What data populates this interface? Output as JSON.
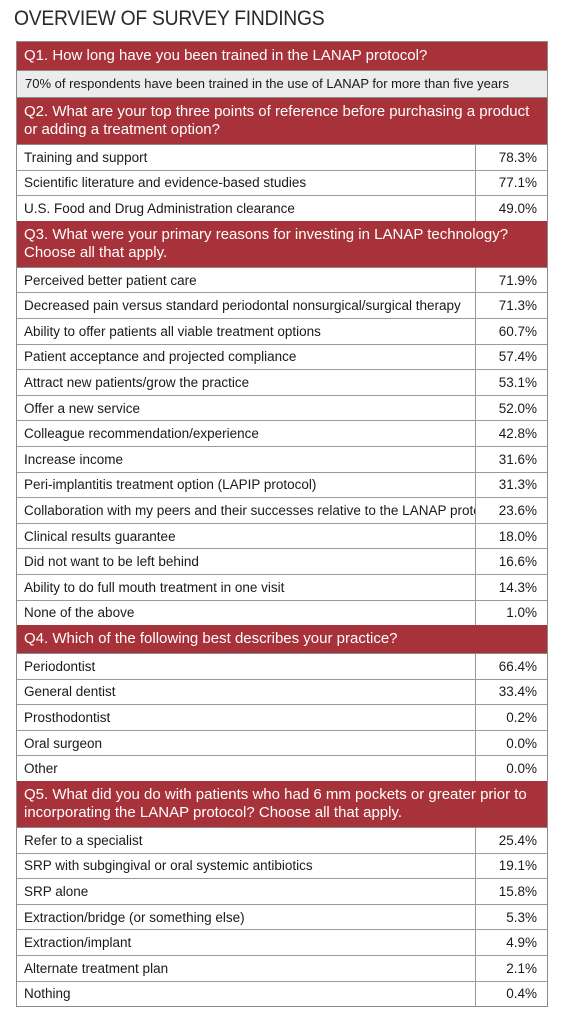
{
  "title": "OVERVIEW OF SURVEY FINDINGS",
  "sections": [
    {
      "question": "Q1. How long have you been trained in the LANAP protocol?",
      "note": "70% of respondents have been trained in the use of LANAP for more than five years",
      "rows": []
    },
    {
      "question": "Q2. What are your top three points of reference before purchasing a product or adding a treatment option?",
      "rows": [
        {
          "label": "Training and support",
          "value": "78.3%"
        },
        {
          "label": "Scientific literature and evidence-based studies",
          "value": "77.1%"
        },
        {
          "label": "U.S. Food and Drug Administration clearance",
          "value": "49.0%"
        }
      ]
    },
    {
      "question": "Q3. What were your primary reasons for investing in LANAP technology? Choose all that apply.",
      "rows": [
        {
          "label": "Perceived better patient care",
          "value": "71.9%"
        },
        {
          "label": "Decreased pain versus standard periodontal nonsurgical/surgical therapy",
          "value": "71.3%"
        },
        {
          "label": "Ability to offer patients all viable treatment options",
          "value": "60.7%"
        },
        {
          "label": "Patient acceptance and projected compliance",
          "value": "57.4%"
        },
        {
          "label": "Attract new patients/grow the practice",
          "value": "53.1%"
        },
        {
          "label": "Offer a new service",
          "value": "52.0%"
        },
        {
          "label": "Colleague recommendation/experience",
          "value": "42.8%"
        },
        {
          "label": "Increase income",
          "value": "31.6%"
        },
        {
          "label": "Peri-implantitis treatment option (LAPIP protocol)",
          "value": "31.3%"
        },
        {
          "label": "Collaboration with my peers and their successes relative to the LANAP protocol",
          "value": "23.6%"
        },
        {
          "label": "Clinical results guarantee",
          "value": "18.0%"
        },
        {
          "label": "Did not want to be left behind",
          "value": "16.6%"
        },
        {
          "label": "Ability to do full mouth treatment in one visit",
          "value": "14.3%"
        },
        {
          "label": "None of the above",
          "value": "1.0%"
        }
      ]
    },
    {
      "question": "Q4. Which of the following best describes your practice?",
      "rows": [
        {
          "label": "Periodontist",
          "value": "66.4%"
        },
        {
          "label": "General dentist",
          "value": "33.4%"
        },
        {
          "label": "Prosthodontist",
          "value": "0.2%"
        },
        {
          "label": "Oral surgeon",
          "value": "0.0%"
        },
        {
          "label": "Other",
          "value": "0.0%"
        }
      ]
    },
    {
      "question": "Q5. What did you do with patients who had 6 mm pockets or greater prior to incorporating the LANAP protocol? Choose all that apply.",
      "rows": [
        {
          "label": "Refer to a specialist",
          "value": "25.4%"
        },
        {
          "label": "SRP with subgingival or oral systemic antibiotics",
          "value": "19.1%"
        },
        {
          "label": "SRP alone",
          "value": "15.8%"
        },
        {
          "label": "Extraction/bridge (or something else)",
          "value": "5.3%"
        },
        {
          "label": "Extraction/implant",
          "value": "4.9%"
        },
        {
          "label": "Alternate treatment plan",
          "value": "2.1%"
        },
        {
          "label": "Nothing",
          "value": "0.4%"
        }
      ]
    }
  ],
  "colors": {
    "header": "#a8323a",
    "note_bg": "#ececec"
  }
}
